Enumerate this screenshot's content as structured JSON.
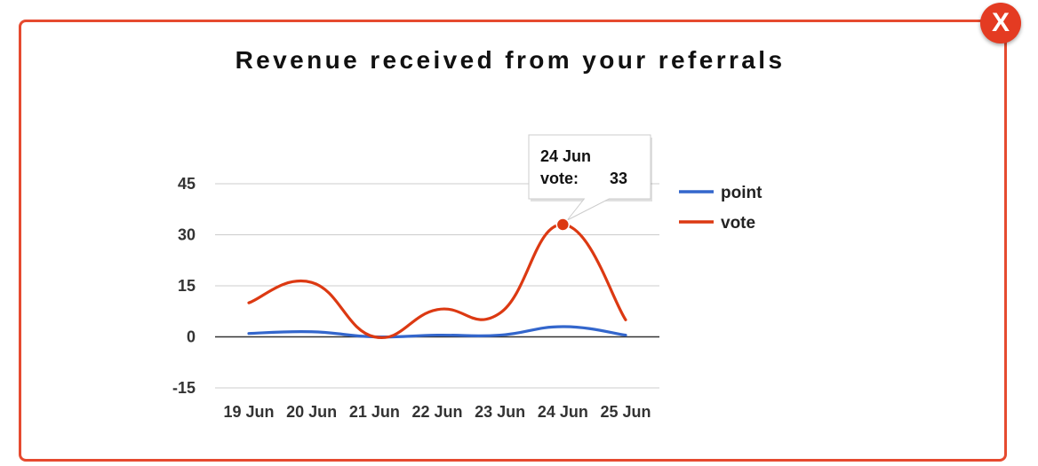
{
  "window": {
    "close_label": "X",
    "frame_color": "#e64a2f",
    "close_color": "#e43b22"
  },
  "chart_data": {
    "type": "line",
    "title": "Revenue received from your referrals",
    "xlabel": "",
    "ylabel": "",
    "categories": [
      "19 Jun",
      "20 Jun",
      "21 Jun",
      "22 Jun",
      "23 Jun",
      "24 Jun",
      "25 Jun"
    ],
    "yticks": [
      -15,
      0,
      15,
      30,
      45
    ],
    "ylim": [
      -15,
      45
    ],
    "grid": true,
    "legend_position": "right",
    "series": [
      {
        "name": "point",
        "color": "#3366cc",
        "values": [
          1,
          1.5,
          0,
          0.5,
          0.5,
          3,
          0.5
        ]
      },
      {
        "name": "vote",
        "color": "#dc3912",
        "values": [
          10,
          16,
          0,
          8,
          7,
          33,
          5
        ]
      }
    ],
    "tooltip": {
      "category": "24 Jun",
      "series": "vote",
      "label": "vote:",
      "value": "33"
    }
  }
}
